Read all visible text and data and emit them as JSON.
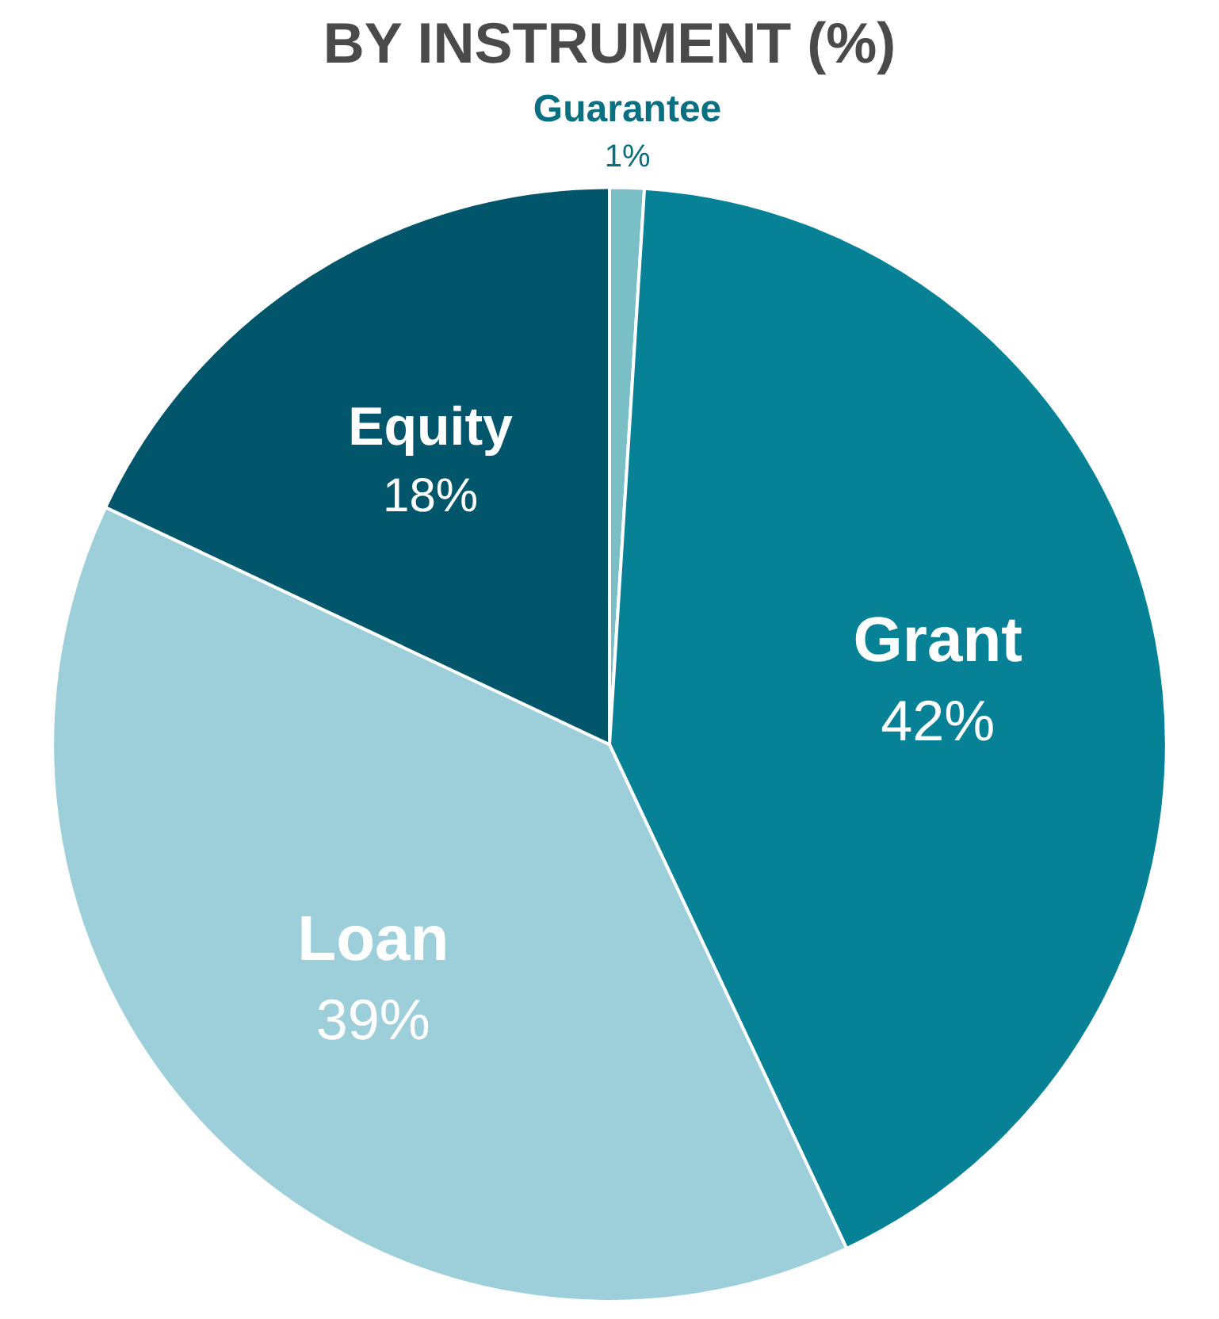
{
  "chart_data": {
    "type": "pie",
    "title": "BY INSTRUMENT (%)",
    "categories": [
      "Guarantee",
      "Grant",
      "Loan",
      "Equity"
    ],
    "values": [
      1,
      42,
      39,
      18
    ],
    "value_labels": [
      "1%",
      "42%",
      "39%",
      "18%"
    ],
    "colors": [
      "#7bbfc6",
      "#068196",
      "#9dcfdb",
      "#02566b"
    ],
    "legend": false
  }
}
